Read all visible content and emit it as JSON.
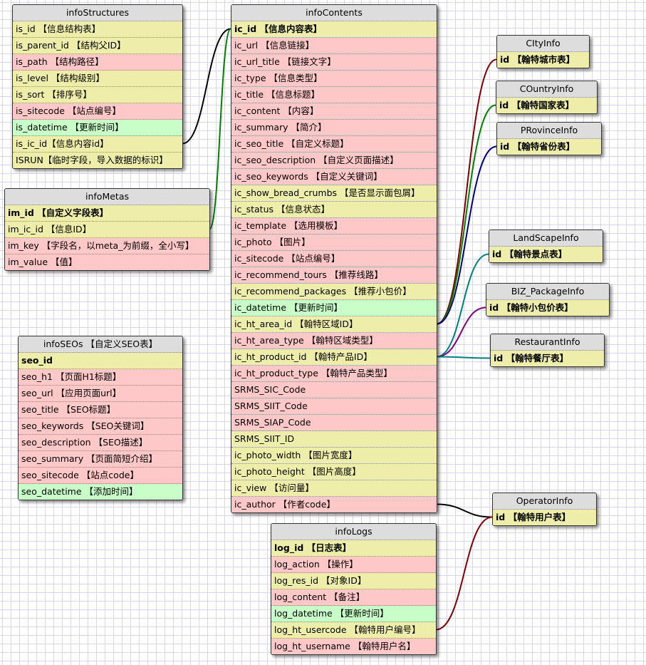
{
  "colors": {
    "yellow": "#eeeeaa",
    "pink": "#ffc8c8",
    "green": "#c8ffc8",
    "header": "#dddddd"
  },
  "tables": {
    "infoStructures": {
      "title": "infoStructures",
      "rows": [
        {
          "text": "is_id 【信息结构表】",
          "color": "yellow"
        },
        {
          "text": "is_parent_id 【结构父ID】",
          "color": "yellow"
        },
        {
          "text": "is_path 【结构路径】",
          "color": "pink"
        },
        {
          "text": "is_level 【结构级别】",
          "color": "yellow"
        },
        {
          "text": "is_sort 【排序号】",
          "color": "yellow"
        },
        {
          "text": "is_sitecode 【站点编号】",
          "color": "pink"
        },
        {
          "text": "is_datetime 【更新时间】",
          "color": "green"
        },
        {
          "text": "is_ic_id【信息内容id】",
          "color": "yellow"
        },
        {
          "text": "ISRUN【临时字段，导入数据的标识】",
          "color": "yellow"
        }
      ]
    },
    "infoMetas": {
      "title": "infoMetas",
      "rows": [
        {
          "text": "im_id 【自定义字段表】",
          "color": "yellow",
          "pk": true
        },
        {
          "text": "im_ic_id 【信息ID】",
          "color": "yellow"
        },
        {
          "text": "im_key 【字段名，以meta_为前缀，全小写】",
          "color": "pink"
        },
        {
          "text": "im_value 【值】",
          "color": "pink"
        }
      ]
    },
    "infoSEOs": {
      "title": "infoSEOs 【自定义SEO表】",
      "rows": [
        {
          "text": "seo_id",
          "color": "yellow",
          "pk": true
        },
        {
          "text": "seo_h1 【页面H1标题】",
          "color": "pink"
        },
        {
          "text": "seo_url 【应用页面url】",
          "color": "pink"
        },
        {
          "text": "seo_title 【SEO标题】",
          "color": "pink"
        },
        {
          "text": "seo_keywords 【SEO关键词】",
          "color": "pink"
        },
        {
          "text": "seo_description 【SEO描述】",
          "color": "pink"
        },
        {
          "text": "seo_summary 【页面简短介绍】",
          "color": "pink"
        },
        {
          "text": "seo_sitecode 【站点code】",
          "color": "pink"
        },
        {
          "text": "seo_datetime 【添加时间】",
          "color": "green"
        }
      ]
    },
    "infoContents": {
      "title": "infoContents",
      "rows": [
        {
          "text": "ic_id 【信息内容表】",
          "color": "yellow",
          "pk": true
        },
        {
          "text": "ic_url 【信息链接】",
          "color": "pink"
        },
        {
          "text": "ic_url_title 【链接文字】",
          "color": "pink"
        },
        {
          "text": "ic_type 【信息类型】",
          "color": "pink"
        },
        {
          "text": "ic_title 【信息标题】",
          "color": "pink"
        },
        {
          "text": "ic_content 【内容】",
          "color": "pink"
        },
        {
          "text": "ic_summary 【简介】",
          "color": "pink"
        },
        {
          "text": "ic_seo_title 【自定义标题】",
          "color": "pink"
        },
        {
          "text": "ic_seo_description 【自定义页面描述】",
          "color": "pink"
        },
        {
          "text": "ic_seo_keywords 【自定义关键词】",
          "color": "pink"
        },
        {
          "text": "ic_show_bread_crumbs 【是否显示面包屑】",
          "color": "yellow"
        },
        {
          "text": "ic_status 【信息状态】",
          "color": "yellow"
        },
        {
          "text": "ic_template 【选用模板】",
          "color": "pink"
        },
        {
          "text": "ic_photo 【图片】",
          "color": "pink"
        },
        {
          "text": "ic_sitecode 【站点编号】",
          "color": "pink"
        },
        {
          "text": "ic_recommend_tours 【推荐线路】",
          "color": "pink"
        },
        {
          "text": "ic_recommend_packages 【推荐小包价】",
          "color": "yellow"
        },
        {
          "text": "ic_datetime 【更新时间】",
          "color": "green"
        },
        {
          "text": "ic_ht_area_id 【翰特区域ID】",
          "color": "yellow"
        },
        {
          "text": "ic_ht_area_type 【翰特区域类型】",
          "color": "pink"
        },
        {
          "text": "ic_ht_product_id 【翰特产品ID】",
          "color": "yellow"
        },
        {
          "text": "ic_ht_product_type 【翰特产品类型】",
          "color": "pink"
        },
        {
          "text": "SRMS_SIC_Code",
          "color": "pink"
        },
        {
          "text": "SRMS_SIIT_Code",
          "color": "pink"
        },
        {
          "text": "SRMS_SIAP_Code",
          "color": "pink"
        },
        {
          "text": "SRMS_SIIT_ID",
          "color": "yellow"
        },
        {
          "text": "ic_photo_width 【图片宽度】",
          "color": "yellow"
        },
        {
          "text": "ic_photo_height 【图片高度】",
          "color": "yellow"
        },
        {
          "text": "ic_view 【访问量】",
          "color": "yellow"
        },
        {
          "text": "ic_author 【作者code】",
          "color": "pink"
        }
      ]
    },
    "infoLogs": {
      "title": "infoLogs",
      "rows": [
        {
          "text": "log_id 【日志表】",
          "color": "yellow",
          "pk": true
        },
        {
          "text": "log_action 【操作】",
          "color": "pink"
        },
        {
          "text": "log_res_id 【对象ID】",
          "color": "yellow"
        },
        {
          "text": "log_content 【备注】",
          "color": "pink"
        },
        {
          "text": "log_datetime 【更新时间】",
          "color": "green"
        },
        {
          "text": "log_ht_usercode 【翰特用户编号】",
          "color": "yellow"
        },
        {
          "text": "log_ht_username 【翰特用户名】",
          "color": "pink"
        }
      ]
    },
    "CItyInfo": {
      "title": "CItyInfo",
      "rows": [
        {
          "text": "id 【翰特城市表】",
          "color": "yellow",
          "pk": true
        }
      ]
    },
    "COuntryInfo": {
      "title": "COuntryInfo",
      "rows": [
        {
          "text": "id 【翰特国家表】",
          "color": "yellow",
          "pk": true
        }
      ]
    },
    "PRovinceInfo": {
      "title": "PRovinceInfo",
      "rows": [
        {
          "text": "id 【翰特省份表】",
          "color": "yellow",
          "pk": true
        }
      ]
    },
    "LandScapeInfo": {
      "title": "LandScapeInfo",
      "rows": [
        {
          "text": "id 【翰特景点表】",
          "color": "yellow",
          "pk": true
        }
      ]
    },
    "BIZ_PackageInfo": {
      "title": "BIZ_PackageInfo",
      "rows": [
        {
          "text": "id 【翰特小包价表】",
          "color": "yellow",
          "pk": true
        }
      ]
    },
    "RestaurantInfo": {
      "title": "RestaurantInfo",
      "rows": [
        {
          "text": "id 【翰特餐厅表】",
          "color": "yellow",
          "pk": true
        }
      ]
    },
    "OperatorInfo": {
      "title": "OperatorInfo",
      "rows": [
        {
          "text": "id 【翰特用户表】",
          "color": "yellow",
          "pk": true
        }
      ]
    }
  },
  "relations": [
    {
      "from": "infoStructures.is_ic_id",
      "to": "infoContents.ic_id",
      "color": "#000000"
    },
    {
      "from": "infoMetas.im_ic_id",
      "to": "infoContents.ic_id",
      "color": "#008000"
    },
    {
      "from": "infoContents.ic_ht_area_id",
      "to": "CItyInfo.id",
      "color": "#800000"
    },
    {
      "from": "infoContents.ic_ht_area_id",
      "to": "COuntryInfo.id",
      "color": "#008000"
    },
    {
      "from": "infoContents.ic_ht_area_id",
      "to": "PRovinceInfo.id",
      "color": "#000080"
    },
    {
      "from": "infoContents.ic_ht_product_id",
      "to": "LandScapeInfo.id",
      "color": "#008080"
    },
    {
      "from": "infoContents.ic_ht_product_id",
      "to": "BIZ_PackageInfo.id",
      "color": "#800080"
    },
    {
      "from": "infoContents.ic_ht_product_id",
      "to": "RestaurantInfo.id",
      "color": "#008080"
    },
    {
      "from": "infoContents.ic_author",
      "to": "OperatorInfo.id",
      "color": "#000000"
    },
    {
      "from": "infoLogs.log_ht_usercode",
      "to": "OperatorInfo.id",
      "color": "#800000"
    }
  ]
}
